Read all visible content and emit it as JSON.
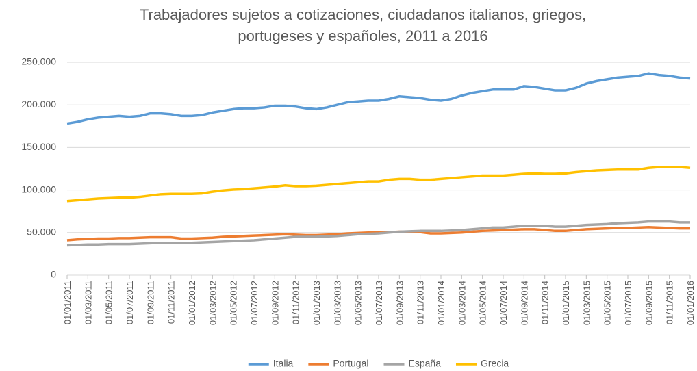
{
  "chart_data": {
    "type": "line",
    "title": "Trabajadores sujetos a cotizaciones, ciudadanos italianos, griegos, portugeses y españoles, 2011 a 2016",
    "categories": [
      "01/01/2011",
      null,
      "01/03/2011",
      null,
      "01/05/2011",
      null,
      "01/07/2011",
      null,
      "01/09/2011",
      null,
      "01/11/2011",
      null,
      "01/01/2012",
      null,
      "01/03/2012",
      null,
      "01/05/2012",
      null,
      "01/07/2012",
      null,
      "01/09/2012",
      null,
      "01/11/2012",
      null,
      "01/01/2013",
      null,
      "01/03/2013",
      null,
      "01/05/2013",
      null,
      "01/07/2013",
      null,
      "01/09/2013",
      null,
      "01/11/2013",
      null,
      "01/01/2014",
      null,
      "01/03/2014",
      null,
      "01/05/2014",
      null,
      "01/07/2014",
      null,
      "01/09/2014",
      null,
      "01/11/2014",
      null,
      "01/01/2015",
      null,
      "01/03/2015",
      null,
      "01/05/2015",
      null,
      "01/07/2015",
      null,
      "01/09/2015",
      null,
      "01/11/2015",
      null,
      "01/01/2016"
    ],
    "series": [
      {
        "name": "Italia",
        "color": "#5b9bd5",
        "values": [
          178000,
          180000,
          183000,
          185000,
          186000,
          187000,
          186000,
          187000,
          190000,
          190000,
          189000,
          187000,
          187000,
          188000,
          191000,
          193000,
          195000,
          196000,
          196000,
          197000,
          199000,
          199000,
          198000,
          196000,
          195000,
          197000,
          200000,
          203000,
          204000,
          205000,
          205000,
          207000,
          210000,
          209000,
          208000,
          206000,
          205000,
          207000,
          211000,
          214000,
          216000,
          218000,
          218000,
          218000,
          222000,
          221000,
          219000,
          217000,
          217000,
          220000,
          225000,
          228000,
          230000,
          232000,
          233000,
          234000,
          237000,
          235000,
          234000,
          232000,
          231000
        ]
      },
      {
        "name": "Portugal",
        "color": "#ed7d31",
        "values": [
          41000,
          42000,
          42500,
          43000,
          43000,
          43500,
          43500,
          44000,
          44500,
          44500,
          44500,
          43000,
          43000,
          43500,
          44000,
          45000,
          45500,
          46000,
          46500,
          47000,
          47500,
          48000,
          47500,
          47000,
          47000,
          47500,
          48000,
          49000,
          49500,
          50000,
          50000,
          50500,
          51000,
          51000,
          50500,
          49000,
          49000,
          49500,
          50000,
          51000,
          52000,
          52500,
          53000,
          53500,
          54000,
          54000,
          53000,
          52000,
          52000,
          53000,
          54000,
          54500,
          55000,
          55500,
          55500,
          56000,
          56500,
          56000,
          55500,
          55000,
          55000
        ]
      },
      {
        "name": "España",
        "color": "#a5a5a5",
        "values": [
          35000,
          35500,
          36000,
          36000,
          36500,
          36500,
          36500,
          37000,
          37500,
          38000,
          38000,
          38000,
          38000,
          38500,
          39000,
          39500,
          40000,
          40500,
          41000,
          42000,
          43000,
          44000,
          45000,
          45000,
          45000,
          45500,
          46000,
          47000,
          48000,
          48500,
          49000,
          50000,
          51000,
          51500,
          52000,
          52000,
          52000,
          52500,
          53000,
          54000,
          55000,
          56000,
          56000,
          57000,
          58000,
          58000,
          58000,
          57000,
          57000,
          58000,
          59000,
          59500,
          60000,
          61000,
          61500,
          62000,
          63000,
          63000,
          63000,
          62000,
          62000
        ]
      },
      {
        "name": "Grecia",
        "color": "#ffc000",
        "values": [
          87000,
          88000,
          89000,
          90000,
          90500,
          91000,
          91000,
          92000,
          93500,
          95000,
          95500,
          95500,
          95500,
          96000,
          98000,
          99500,
          100500,
          101000,
          102000,
          103000,
          104000,
          105500,
          104500,
          104500,
          105000,
          106000,
          107000,
          108000,
          109000,
          110000,
          110000,
          112000,
          113000,
          113000,
          112000,
          112000,
          113000,
          114000,
          115000,
          116000,
          117000,
          117000,
          117000,
          118000,
          119000,
          119500,
          119000,
          119000,
          119500,
          121000,
          122000,
          123000,
          123500,
          124000,
          124000,
          124000,
          126000,
          127000,
          127000,
          127000,
          126000
        ]
      }
    ],
    "ylim": [
      0,
      250000
    ],
    "yticks": [
      0,
      {
        "value": 50000,
        "label": "50.000"
      },
      {
        "value": 100000,
        "label": "100.000"
      },
      {
        "value": 150000,
        "label": "150.000"
      },
      {
        "value": 200000,
        "label": "200.000"
      },
      {
        "value": 250000,
        "label": "250.000"
      }
    ],
    "grid": true,
    "legend": "bottom"
  }
}
